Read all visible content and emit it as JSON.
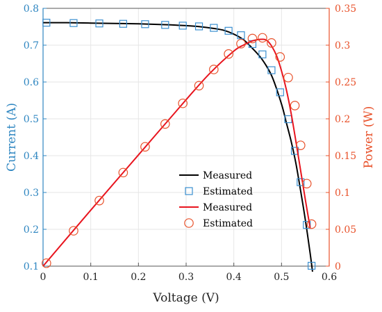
{
  "chart_data": {
    "type": "line",
    "title": "",
    "xlabel": "Voltage (V)",
    "ylabel_left": "Current (A)",
    "ylabel_right": "Power (W)",
    "xlim": [
      0,
      0.6
    ],
    "ylim_left": [
      0.1,
      0.8
    ],
    "ylim_right": [
      0,
      0.35
    ],
    "grid": true,
    "legend_position": "lower-center",
    "colors": {
      "current_axis": "#2E86C1",
      "power_axis": "#E8512A",
      "measured_current": "#000000",
      "estimated_current": "#3A8FD0",
      "measured_power": "#E8141E",
      "estimated_power": "#E8512A",
      "grid": "#e6e6e6"
    },
    "x_ticks": [
      "0",
      "0.1",
      "0.2",
      "0.3",
      "0.4",
      "0.5",
      "0.6"
    ],
    "y_left_ticks": [
      "0.1",
      "0.2",
      "0.3",
      "0.4",
      "0.5",
      "0.6",
      "0.7",
      "0.8"
    ],
    "y_right_ticks": [
      "0",
      "0.05",
      "0.1",
      "0.15",
      "0.2",
      "0.25",
      "0.3",
      "0.35"
    ],
    "series": [
      {
        "name": "Measured",
        "axis": "left",
        "style": "line",
        "points": [
          [
            0,
            0.761
          ],
          [
            0.05,
            0.761
          ],
          [
            0.1,
            0.76
          ],
          [
            0.15,
            0.759
          ],
          [
            0.2,
            0.758
          ],
          [
            0.25,
            0.756
          ],
          [
            0.3,
            0.753
          ],
          [
            0.33,
            0.75
          ],
          [
            0.36,
            0.745
          ],
          [
            0.38,
            0.74
          ],
          [
            0.4,
            0.73
          ],
          [
            0.42,
            0.715
          ],
          [
            0.44,
            0.69
          ],
          [
            0.46,
            0.66
          ],
          [
            0.48,
            0.615
          ],
          [
            0.5,
            0.54
          ],
          [
            0.51,
            0.49
          ],
          [
            0.52,
            0.44
          ],
          [
            0.53,
            0.38
          ],
          [
            0.54,
            0.305
          ],
          [
            0.55,
            0.225
          ],
          [
            0.56,
            0.135
          ],
          [
            0.565,
            0.085
          ]
        ]
      },
      {
        "name": "Estimated",
        "axis": "left",
        "style": "square",
        "points": [
          [
            0.007,
            0.761
          ],
          [
            0.064,
            0.76
          ],
          [
            0.118,
            0.759
          ],
          [
            0.168,
            0.758
          ],
          [
            0.214,
            0.757
          ],
          [
            0.256,
            0.755
          ],
          [
            0.293,
            0.753
          ],
          [
            0.327,
            0.751
          ],
          [
            0.358,
            0.747
          ],
          [
            0.389,
            0.739
          ],
          [
            0.415,
            0.727
          ],
          [
            0.439,
            0.703
          ],
          [
            0.46,
            0.675
          ],
          [
            0.479,
            0.632
          ],
          [
            0.497,
            0.572
          ],
          [
            0.514,
            0.499
          ],
          [
            0.528,
            0.413
          ],
          [
            0.54,
            0.328
          ],
          [
            0.553,
            0.212
          ],
          [
            0.563,
            0.101
          ]
        ]
      },
      {
        "name": "Measured",
        "axis": "right",
        "style": "line",
        "points": [
          [
            0,
            0
          ],
          [
            0.1,
            0.076
          ],
          [
            0.2,
            0.151
          ],
          [
            0.3,
            0.226
          ],
          [
            0.35,
            0.262
          ],
          [
            0.4,
            0.292
          ],
          [
            0.42,
            0.3
          ],
          [
            0.44,
            0.306
          ],
          [
            0.46,
            0.308
          ],
          [
            0.47,
            0.306
          ],
          [
            0.48,
            0.298
          ],
          [
            0.49,
            0.285
          ],
          [
            0.5,
            0.265
          ],
          [
            0.51,
            0.24
          ],
          [
            0.52,
            0.208
          ],
          [
            0.53,
            0.17
          ],
          [
            0.54,
            0.13
          ],
          [
            0.55,
            0.09
          ],
          [
            0.56,
            0.052
          ]
        ]
      },
      {
        "name": "Estimated",
        "axis": "right",
        "style": "circle",
        "points": [
          [
            0.007,
            0.004
          ],
          [
            0.064,
            0.048
          ],
          [
            0.118,
            0.089
          ],
          [
            0.168,
            0.127
          ],
          [
            0.214,
            0.162
          ],
          [
            0.256,
            0.193
          ],
          [
            0.293,
            0.221
          ],
          [
            0.327,
            0.245
          ],
          [
            0.358,
            0.267
          ],
          [
            0.389,
            0.288
          ],
          [
            0.415,
            0.302
          ],
          [
            0.439,
            0.309
          ],
          [
            0.46,
            0.31
          ],
          [
            0.479,
            0.303
          ],
          [
            0.497,
            0.284
          ],
          [
            0.514,
            0.256
          ],
          [
            0.528,
            0.218
          ],
          [
            0.54,
            0.164
          ],
          [
            0.553,
            0.112
          ],
          [
            0.563,
            0.057
          ]
        ]
      }
    ],
    "legend": [
      {
        "label": "Measured",
        "series": 0
      },
      {
        "label": "Estimated",
        "series": 1
      },
      {
        "label": "Measured",
        "series": 2
      },
      {
        "label": "Estimated",
        "series": 3
      }
    ]
  }
}
